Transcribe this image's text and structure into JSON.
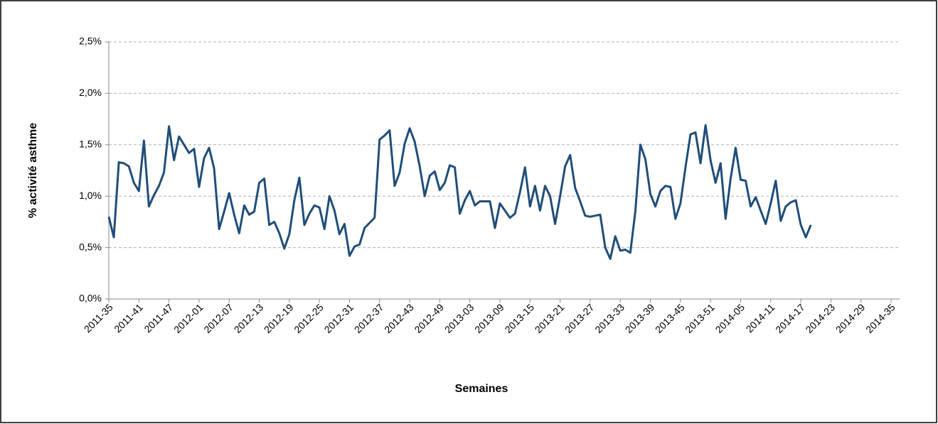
{
  "chart_data": {
    "type": "line",
    "x_label": "Semaines",
    "y_label": "% activité asthme",
    "categories": [
      "2011-35",
      null,
      null,
      null,
      null,
      null,
      "2011-41",
      null,
      null,
      null,
      null,
      null,
      "2011-47",
      null,
      null,
      null,
      null,
      null,
      "2012-01",
      null,
      null,
      null,
      null,
      null,
      "2012-07",
      null,
      null,
      null,
      null,
      null,
      "2012-13",
      null,
      null,
      null,
      null,
      null,
      "2012-19",
      null,
      null,
      null,
      null,
      null,
      "2012-25",
      null,
      null,
      null,
      null,
      null,
      "2012-31",
      null,
      null,
      null,
      null,
      null,
      "2012-37",
      null,
      null,
      null,
      null,
      null,
      "2012-43",
      null,
      null,
      null,
      null,
      null,
      "2012-49",
      null,
      null,
      null,
      null,
      null,
      "2013-03",
      null,
      null,
      null,
      null,
      null,
      "2013-09",
      null,
      null,
      null,
      null,
      null,
      "2013-15",
      null,
      null,
      null,
      null,
      null,
      "2013-21",
      null,
      null,
      null,
      null,
      null,
      "2013-27",
      null,
      null,
      null,
      null,
      null,
      "2013-33",
      null,
      null,
      null,
      null,
      null,
      "2013-39",
      null,
      null,
      null,
      null,
      null,
      "2013-45",
      null,
      null,
      null,
      null,
      null,
      "2013-51",
      null,
      null,
      null,
      null,
      null,
      "2014-05",
      null,
      null,
      null,
      null,
      null,
      "2014-11",
      null,
      null,
      null,
      null,
      null,
      "2014-17",
      null,
      null,
      null,
      null,
      null,
      "2014-23",
      null,
      null,
      null,
      null,
      null,
      "2014-29",
      null,
      null,
      null,
      null,
      null,
      "2014-35"
    ],
    "series": [
      {
        "color": "#1f4e79",
        "values": [
          0.8,
          0.6,
          1.33,
          1.32,
          1.29,
          1.13,
          1.05,
          1.54,
          0.9,
          1.01,
          1.1,
          1.23,
          1.68,
          1.35,
          1.58,
          1.5,
          1.42,
          1.46,
          1.09,
          1.37,
          1.47,
          1.27,
          0.68,
          0.85,
          1.03,
          0.82,
          0.64,
          0.91,
          0.82,
          0.85,
          1.13,
          1.17,
          0.72,
          0.75,
          0.64,
          0.49,
          0.63,
          0.96,
          1.18,
          0.72,
          0.83,
          0.91,
          0.89,
          0.68,
          1.0,
          0.86,
          0.63,
          0.73,
          0.42,
          0.51,
          0.53,
          0.69,
          0.74,
          0.79,
          1.55,
          1.59,
          1.64,
          1.1,
          1.23,
          1.51,
          1.66,
          1.53,
          1.29,
          1.0,
          1.2,
          1.24,
          1.06,
          1.13,
          1.3,
          1.28,
          0.83,
          0.96,
          1.05,
          0.91,
          0.95,
          0.95,
          0.95,
          0.69,
          0.93,
          0.86,
          0.79,
          0.83,
          1.04,
          1.28,
          0.9,
          1.1,
          0.86,
          1.1,
          1.0,
          0.73,
          1.0,
          1.29,
          1.4,
          1.08,
          0.95,
          0.81,
          0.8,
          0.81,
          0.82,
          0.5,
          0.39,
          0.61,
          0.47,
          0.48,
          0.45,
          0.85,
          1.5,
          1.36,
          1.02,
          0.9,
          1.05,
          1.1,
          1.09,
          0.78,
          0.93,
          1.28,
          1.6,
          1.62,
          1.32,
          1.69,
          1.35,
          1.13,
          1.32,
          0.78,
          1.17,
          1.47,
          1.16,
          1.15,
          0.9,
          0.99,
          0.86,
          0.73,
          0.93,
          1.15,
          0.76,
          0.9,
          0.94,
          0.96,
          0.72,
          0.6,
          0.72,
          null,
          null,
          null,
          null,
          null,
          null,
          null,
          null,
          null,
          null,
          null,
          null,
          null,
          null,
          null,
          null
        ]
      }
    ],
    "ylim": [
      0,
      2.5
    ],
    "yticks": [
      {
        "value": 0,
        "label": "0,0%"
      },
      {
        "value": 0.5,
        "label": "0,5%"
      },
      {
        "value": 1,
        "label": "1,0%"
      },
      {
        "value": 1.5,
        "label": "1,5%"
      },
      {
        "value": 2,
        "label": "2,0%"
      },
      {
        "value": 2.5,
        "label": "2,5%"
      }
    ],
    "grid": true
  }
}
